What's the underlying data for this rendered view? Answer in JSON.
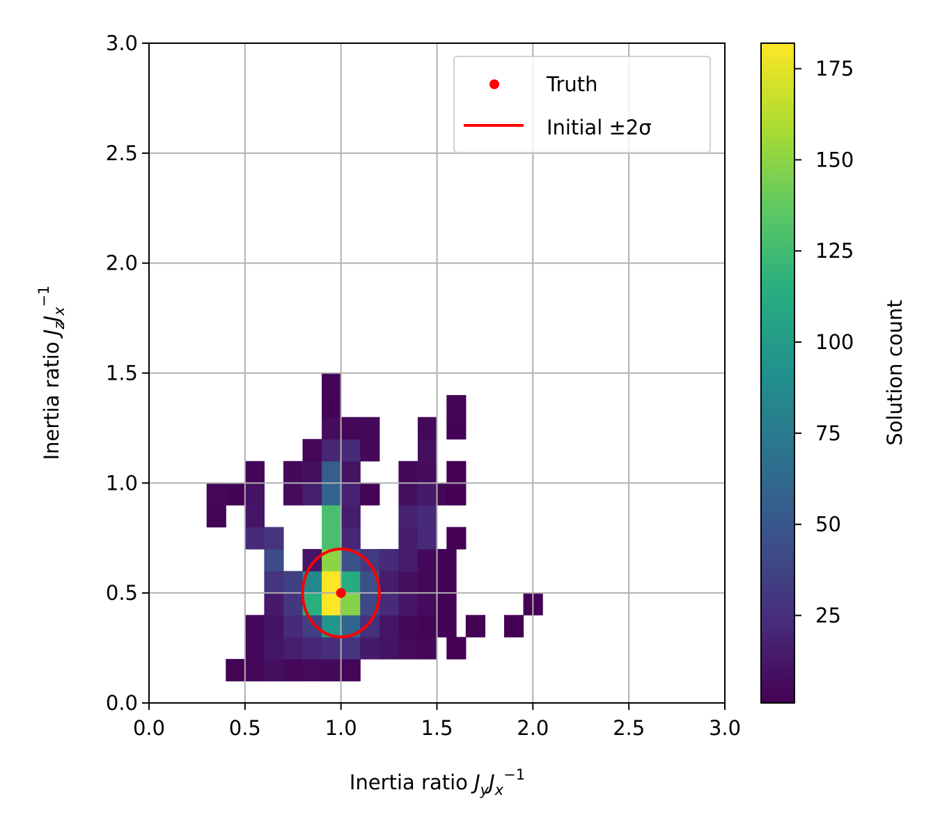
{
  "chart_data": {
    "type": "heatmap",
    "title": "",
    "xlabel": {
      "prefix": "Inertia ratio ",
      "a": "J",
      "a_sub": "y",
      "b": "J",
      "b_sub": "x",
      "b_sup": "−1"
    },
    "ylabel": {
      "prefix": "Inertia ratio ",
      "a": "J",
      "a_sub": "z",
      "b": "J",
      "b_sub": "x",
      "b_sup": "−1"
    },
    "xlim": [
      0,
      3
    ],
    "ylim": [
      0,
      3
    ],
    "x_ticks": [
      "0.0",
      "0.5",
      "1.0",
      "1.5",
      "2.0",
      "2.5",
      "3.0"
    ],
    "y_ticks": [
      "0.0",
      "0.5",
      "1.0",
      "1.5",
      "2.0",
      "2.5",
      "3.0"
    ],
    "grid": true,
    "colormap": "viridis",
    "bin_width": 0.1,
    "bin_height": 0.1,
    "cells": [
      [
        0.45,
        0.15,
        3
      ],
      [
        0.55,
        0.15,
        5
      ],
      [
        0.65,
        0.15,
        8
      ],
      [
        0.75,
        0.15,
        4
      ],
      [
        0.85,
        0.15,
        6
      ],
      [
        0.95,
        0.15,
        5
      ],
      [
        1.05,
        0.15,
        4
      ],
      [
        0.55,
        0.25,
        5
      ],
      [
        0.65,
        0.25,
        12
      ],
      [
        0.75,
        0.25,
        16
      ],
      [
        0.85,
        0.25,
        20
      ],
      [
        0.95,
        0.25,
        24
      ],
      [
        1.05,
        0.25,
        28
      ],
      [
        1.15,
        0.25,
        14
      ],
      [
        1.25,
        0.25,
        10
      ],
      [
        1.35,
        0.25,
        6
      ],
      [
        1.45,
        0.25,
        4
      ],
      [
        1.6,
        0.25,
        1
      ],
      [
        0.55,
        0.35,
        4
      ],
      [
        0.65,
        0.35,
        10
      ],
      [
        0.75,
        0.35,
        22
      ],
      [
        0.85,
        0.35,
        36
      ],
      [
        0.95,
        0.35,
        95
      ],
      [
        1.05,
        0.35,
        60
      ],
      [
        1.15,
        0.35,
        25
      ],
      [
        1.25,
        0.35,
        12
      ],
      [
        1.35,
        0.35,
        5
      ],
      [
        1.45,
        0.35,
        3
      ],
      [
        1.55,
        0.35,
        2
      ],
      [
        1.7,
        0.35,
        1
      ],
      [
        1.9,
        0.35,
        1
      ],
      [
        0.65,
        0.45,
        14
      ],
      [
        0.75,
        0.45,
        30
      ],
      [
        0.85,
        0.45,
        115
      ],
      [
        0.95,
        0.45,
        182
      ],
      [
        1.05,
        0.45,
        148
      ],
      [
        1.15,
        0.45,
        40
      ],
      [
        1.25,
        0.45,
        22
      ],
      [
        1.35,
        0.45,
        12
      ],
      [
        1.45,
        0.45,
        6
      ],
      [
        1.55,
        0.45,
        2
      ],
      [
        2.0,
        0.45,
        1
      ],
      [
        0.65,
        0.55,
        28
      ],
      [
        0.75,
        0.55,
        35
      ],
      [
        0.85,
        0.55,
        85
      ],
      [
        0.95,
        0.55,
        182
      ],
      [
        1.05,
        0.55,
        112
      ],
      [
        1.15,
        0.55,
        45
      ],
      [
        1.25,
        0.55,
        15
      ],
      [
        1.35,
        0.55,
        8
      ],
      [
        1.45,
        0.55,
        4
      ],
      [
        1.55,
        0.55,
        2
      ],
      [
        0.65,
        0.65,
        42
      ],
      [
        0.85,
        0.65,
        12
      ],
      [
        0.95,
        0.65,
        150
      ],
      [
        1.05,
        0.65,
        45
      ],
      [
        1.15,
        0.65,
        32
      ],
      [
        1.25,
        0.65,
        22
      ],
      [
        1.35,
        0.65,
        15
      ],
      [
        1.45,
        0.65,
        5
      ],
      [
        1.55,
        0.65,
        2
      ],
      [
        0.55,
        0.75,
        22
      ],
      [
        0.65,
        0.75,
        28
      ],
      [
        0.95,
        0.75,
        128
      ],
      [
        1.05,
        0.75,
        20
      ],
      [
        1.35,
        0.75,
        15
      ],
      [
        1.45,
        0.75,
        22
      ],
      [
        1.6,
        0.75,
        1
      ],
      [
        0.35,
        0.85,
        3
      ],
      [
        0.55,
        0.85,
        12
      ],
      [
        0.95,
        0.85,
        128
      ],
      [
        1.05,
        0.85,
        15
      ],
      [
        1.35,
        0.85,
        18
      ],
      [
        1.45,
        0.85,
        22
      ],
      [
        0.35,
        0.95,
        4
      ],
      [
        0.45,
        0.95,
        2
      ],
      [
        0.55,
        0.95,
        10
      ],
      [
        0.75,
        0.95,
        6
      ],
      [
        0.85,
        0.95,
        16
      ],
      [
        0.95,
        0.95,
        60
      ],
      [
        1.05,
        0.95,
        18
      ],
      [
        1.15,
        0.95,
        3
      ],
      [
        1.35,
        0.95,
        8
      ],
      [
        1.45,
        0.95,
        14
      ],
      [
        1.55,
        0.95,
        4
      ],
      [
        1.6,
        0.95,
        1
      ],
      [
        0.55,
        1.05,
        3
      ],
      [
        0.75,
        1.05,
        5
      ],
      [
        0.85,
        1.05,
        8
      ],
      [
        0.95,
        1.05,
        55
      ],
      [
        1.05,
        1.05,
        10
      ],
      [
        1.35,
        1.05,
        5
      ],
      [
        1.45,
        1.05,
        6
      ],
      [
        1.6,
        1.05,
        1
      ],
      [
        0.85,
        1.15,
        4
      ],
      [
        0.95,
        1.15,
        20
      ],
      [
        1.05,
        1.15,
        22
      ],
      [
        1.15,
        1.15,
        5
      ],
      [
        1.45,
        1.15,
        8
      ],
      [
        0.95,
        1.25,
        6
      ],
      [
        1.05,
        1.25,
        4
      ],
      [
        1.15,
        1.25,
        5
      ],
      [
        1.45,
        1.25,
        4
      ],
      [
        1.6,
        1.25,
        2
      ],
      [
        0.95,
        1.35,
        2
      ],
      [
        1.6,
        1.35,
        3
      ],
      [
        0.95,
        1.45,
        3
      ]
    ],
    "truth_point": {
      "x": 1.0,
      "y": 0.5
    },
    "ellipse": {
      "cx": 1.0,
      "cy": 0.5,
      "rx": 0.2,
      "ry": 0.2
    },
    "legend": {
      "position": "upper right",
      "entries": [
        {
          "label": "Truth",
          "marker": "dot",
          "color": "#ff0000"
        },
        {
          "label": "Initial ±2σ",
          "marker": "line",
          "color": "#ff0000"
        }
      ]
    },
    "colorbar": {
      "label": "Solution count",
      "min": 1,
      "max": 182,
      "ticks": [
        "25",
        "50",
        "75",
        "100",
        "125",
        "150",
        "175"
      ],
      "tick_values": [
        25,
        50,
        75,
        100,
        125,
        150,
        175
      ]
    }
  }
}
